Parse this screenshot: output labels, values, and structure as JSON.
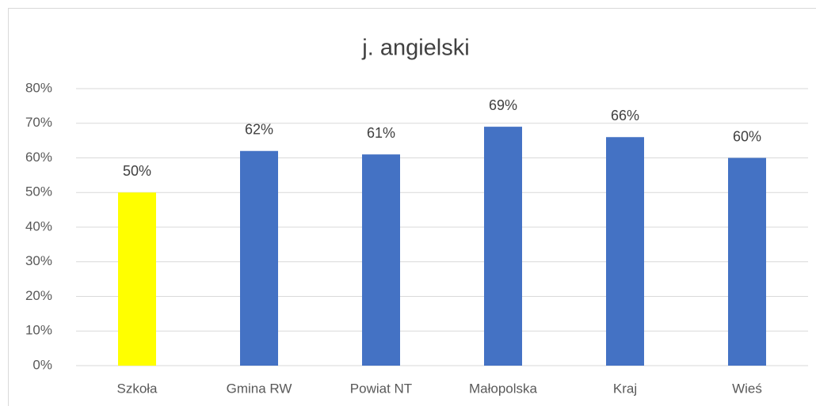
{
  "chart_data": {
    "type": "bar",
    "title": "j. angielski",
    "categories": [
      "Szkoła",
      "Gmina RW",
      "Powiat NT",
      "Małopolska",
      "Kraj",
      "Wieś"
    ],
    "values": [
      50,
      62,
      61,
      69,
      66,
      60
    ],
    "value_labels": [
      "50%",
      "62%",
      "61%",
      "69%",
      "66%",
      "60%"
    ],
    "colors": [
      "#ffff00",
      "#4472c4",
      "#4472c4",
      "#4472c4",
      "#4472c4",
      "#4472c4"
    ],
    "ylim": [
      0,
      80
    ],
    "yticks": [
      {
        "value": 0,
        "label": "0%"
      },
      {
        "value": 10,
        "label": "10%"
      },
      {
        "value": 20,
        "label": "20%"
      },
      {
        "value": 30,
        "label": "30%"
      },
      {
        "value": 40,
        "label": "40%"
      },
      {
        "value": 50,
        "label": "50%"
      },
      {
        "value": 60,
        "label": "60%"
      },
      {
        "value": 70,
        "label": "70%"
      },
      {
        "value": 80,
        "label": "80%"
      }
    ],
    "grid": true
  }
}
